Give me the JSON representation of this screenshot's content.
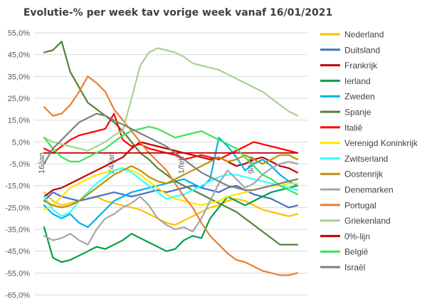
{
  "chart_data": {
    "type": "line",
    "title": "Evolutie-% per week tav vorige week vanaf 16/01/2021",
    "ylim": [
      -65,
      55
    ],
    "y_ticks": [
      "55,0%",
      "45,0%",
      "35,0%",
      "25,0%",
      "15,0%",
      "5,0%",
      "-5,0%",
      "-15,0%",
      "-25,0%",
      "-35,0%",
      "-45,0%",
      "-55,0%",
      "-65,0%"
    ],
    "x_ticks": [
      {
        "label": "16/jan",
        "index": 0
      },
      {
        "label": "24/jan",
        "index": 8
      },
      {
        "label": "1/feb",
        "index": 16
      },
      {
        "label": "9/feb",
        "index": 24
      }
    ],
    "grid": true,
    "legend_position": "right",
    "series": [
      {
        "name": "Nederland",
        "color": "#ffc000",
        "values": [
          -18,
          -22,
          -24,
          -23,
          -22,
          -21,
          -20,
          -22,
          -23,
          -24,
          -25,
          -26,
          -28,
          -30,
          -32,
          -33,
          -31,
          -29,
          -27,
          -25,
          -24,
          -22,
          -21,
          -22,
          -24,
          -26,
          -27,
          -28,
          -29,
          -28
        ]
      },
      {
        "name": "Duitsland",
        "color": "#4472c4",
        "values": [
          -22,
          -18,
          -20,
          -21,
          -22,
          -21,
          -20,
          -19,
          -18,
          -19,
          -20,
          -19,
          -18,
          -17,
          -18,
          -17,
          -16,
          -15,
          -16,
          -17,
          -18,
          -16,
          -15,
          -17,
          -19,
          -20,
          -21,
          -23,
          -25,
          -24
        ]
      },
      {
        "name": "Frankrijk",
        "color": "#c00000",
        "values": [
          -20,
          -17,
          -16,
          -14,
          -12,
          -10,
          -8,
          -6,
          -4,
          -2,
          2,
          5,
          4,
          3,
          2,
          1,
          0,
          -1,
          -2,
          -3,
          -2,
          -4,
          -6,
          -5,
          -3,
          -2,
          -4,
          -6,
          -7,
          -9
        ]
      },
      {
        "name": "Ierland",
        "color": "#00a04b",
        "values": [
          -34,
          -48,
          -50,
          -49,
          -47,
          -45,
          -43,
          -44,
          -42,
          -40,
          -37,
          -39,
          -41,
          -43,
          -45,
          -44,
          -40,
          -38,
          -39,
          -30,
          -25,
          -20,
          -22,
          -24,
          -22,
          -20,
          -18,
          -17,
          -16,
          -15
        ]
      },
      {
        "name": "Zweden",
        "color": "#00b0f0",
        "values": [
          -24,
          -28,
          -30,
          -28,
          -32,
          -34,
          -30,
          -26,
          -22,
          -20,
          -18,
          -17,
          -16,
          -15,
          -14,
          -13,
          -12,
          -14,
          -16,
          -12,
          7,
          3,
          -2,
          -8,
          -5,
          -3,
          -6,
          -10,
          -13,
          -15
        ]
      },
      {
        "name": "Spanje",
        "color": "#548235",
        "values": [
          46,
          47,
          51,
          37,
          30,
          23,
          20,
          17,
          14,
          10,
          5,
          0,
          -3,
          -7,
          -10,
          -13,
          -15,
          -17,
          -19,
          -21,
          -23,
          -25,
          -27,
          -30,
          -33,
          -36,
          -39,
          -42,
          -42,
          -42
        ]
      },
      {
        "name": "Italiê",
        "color": "#ff0000",
        "values": [
          2,
          0,
          3,
          6,
          8,
          9,
          10,
          11,
          18,
          6,
          3,
          4,
          2,
          1,
          0,
          -1,
          -3,
          -2,
          -1,
          -2,
          -3,
          -1,
          1,
          3,
          5,
          4,
          3,
          2,
          1,
          0
        ]
      },
      {
        "name": "Verenigd Koninkrijk",
        "color": "#ffe600",
        "values": [
          -26,
          -24,
          -20,
          -16,
          -14,
          -12,
          -10,
          -9,
          -8,
          -7,
          -8,
          -10,
          -13,
          -16,
          -19,
          -21,
          -22,
          -23,
          -24,
          -23,
          -22,
          -20,
          -19,
          -18,
          -17,
          -16,
          -15,
          -15,
          -14,
          -14
        ]
      },
      {
        "name": "Zwitserland",
        "color": "#33ffff",
        "values": [
          -20,
          -26,
          -29,
          -27,
          -22,
          -18,
          -14,
          -11,
          -8,
          -7,
          -9,
          -12,
          -15,
          -18,
          -21,
          -20,
          -19,
          -17,
          -15,
          -13,
          -11,
          -10,
          -10,
          -11,
          -12,
          -13,
          -14,
          -15,
          -16,
          -17
        ]
      },
      {
        "name": "Oostenrijk",
        "color": "#bf9000",
        "values": [
          -22,
          -24,
          -25,
          -24,
          -22,
          -19,
          -16,
          -13,
          -10,
          -8,
          -6,
          -8,
          -11,
          -13,
          -14,
          -12,
          -10,
          -8,
          -6,
          -4,
          -2,
          -4,
          -3,
          -1,
          -3,
          -5,
          -3,
          -1,
          -1,
          -3
        ]
      },
      {
        "name": "Denemarken",
        "color": "#a6a6a6",
        "values": [
          -38,
          -40,
          -39,
          -37,
          -40,
          -42,
          -35,
          -30,
          -28,
          -25,
          -23,
          -20,
          -24,
          -30,
          -33,
          -35,
          -34,
          -36,
          -30,
          -22,
          -14,
          -8,
          -12,
          -16,
          -14,
          -10,
          -7,
          -5,
          -4,
          -5
        ]
      },
      {
        "name": "Portugal",
        "color": "#ed7d31",
        "values": [
          21,
          17,
          18,
          22,
          28,
          35,
          32,
          28,
          20,
          15,
          10,
          5,
          0,
          -4,
          -8,
          -14,
          -20,
          -25,
          -32,
          -38,
          -42,
          -46,
          -49,
          -50,
          -52,
          -54,
          -55,
          -56,
          -56,
          -55
        ]
      },
      {
        "name": "Griekenland",
        "color": "#a9d18e",
        "values": [
          7,
          5,
          4,
          3,
          2,
          1,
          3,
          5,
          8,
          10,
          25,
          40,
          46,
          48,
          47,
          46,
          44,
          41,
          40,
          39,
          38,
          36,
          34,
          32,
          30,
          28,
          25,
          22,
          19,
          17
        ]
      },
      {
        "name": "0%-lijn",
        "color": "#c00000",
        "values": [
          0,
          0,
          0,
          0,
          0,
          0,
          0,
          0,
          0,
          0,
          0,
          0,
          0,
          0,
          0,
          0,
          0,
          0,
          0,
          0,
          0,
          0,
          0,
          0,
          0,
          0,
          0,
          0,
          0,
          0
        ]
      },
      {
        "name": "België",
        "color": "#3de256",
        "values": [
          7,
          2,
          -2,
          -4,
          -4,
          -2,
          0,
          2,
          5,
          8,
          10,
          11,
          12,
          11,
          9,
          7,
          8,
          9,
          10,
          8,
          6,
          4,
          2,
          -2,
          -6,
          -10,
          -12,
          -15,
          -17,
          -19
        ]
      },
      {
        "name": "Israël",
        "color": "#7f7f7f",
        "values": [
          -5,
          2,
          6,
          10,
          14,
          16,
          18,
          17,
          15,
          13,
          11,
          9,
          7,
          5,
          3,
          0,
          -3,
          -6,
          -9,
          -11,
          -13,
          -15,
          -16,
          -17,
          -17,
          -16,
          -15,
          -14,
          -13,
          -12
        ]
      }
    ]
  }
}
